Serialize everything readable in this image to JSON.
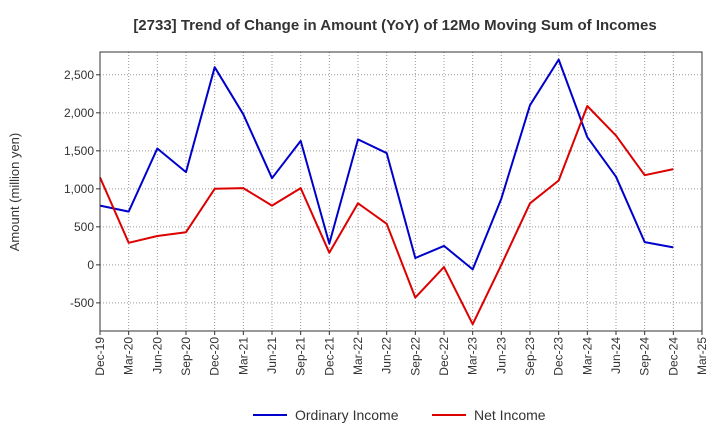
{
  "chart_data": {
    "type": "line",
    "title": "[2733]  Trend of Change in Amount (YoY) of 12Mo Moving Sum of Incomes",
    "xlabel": "",
    "ylabel": "Amount (million yen)",
    "ylim": [
      -870,
      2800
    ],
    "yticks": [
      -500,
      0,
      500,
      1000,
      1500,
      2000,
      2500
    ],
    "ytick_labels": [
      "-500",
      "0",
      "500",
      "1,000",
      "1,500",
      "2,000",
      "2,500"
    ],
    "categories": [
      "Dec-19",
      "Mar-20",
      "Jun-20",
      "Sep-20",
      "Dec-20",
      "Mar-21",
      "Jun-21",
      "Sep-21",
      "Dec-21",
      "Mar-22",
      "Jun-22",
      "Sep-22",
      "Dec-22",
      "Mar-23",
      "Jun-23",
      "Sep-23",
      "Dec-23",
      "Mar-24",
      "Jun-24",
      "Sep-24",
      "Dec-24",
      "Mar-25"
    ],
    "grid": true,
    "legend_position": "bottom",
    "series": [
      {
        "name": "Ordinary Income",
        "color": "#0000cc",
        "values": [
          780,
          700,
          1530,
          1220,
          2600,
          1980,
          1140,
          1630,
          280,
          1650,
          1470,
          90,
          250,
          -60,
          870,
          2100,
          2700,
          1680,
          1160,
          300,
          230,
          null
        ]
      },
      {
        "name": "Net Income",
        "color": "#dd0000",
        "values": [
          1150,
          290,
          380,
          430,
          1000,
          1010,
          780,
          1010,
          160,
          810,
          540,
          -430,
          -30,
          -780,
          0,
          810,
          1110,
          2090,
          1700,
          1180,
          1260,
          null
        ]
      }
    ]
  }
}
